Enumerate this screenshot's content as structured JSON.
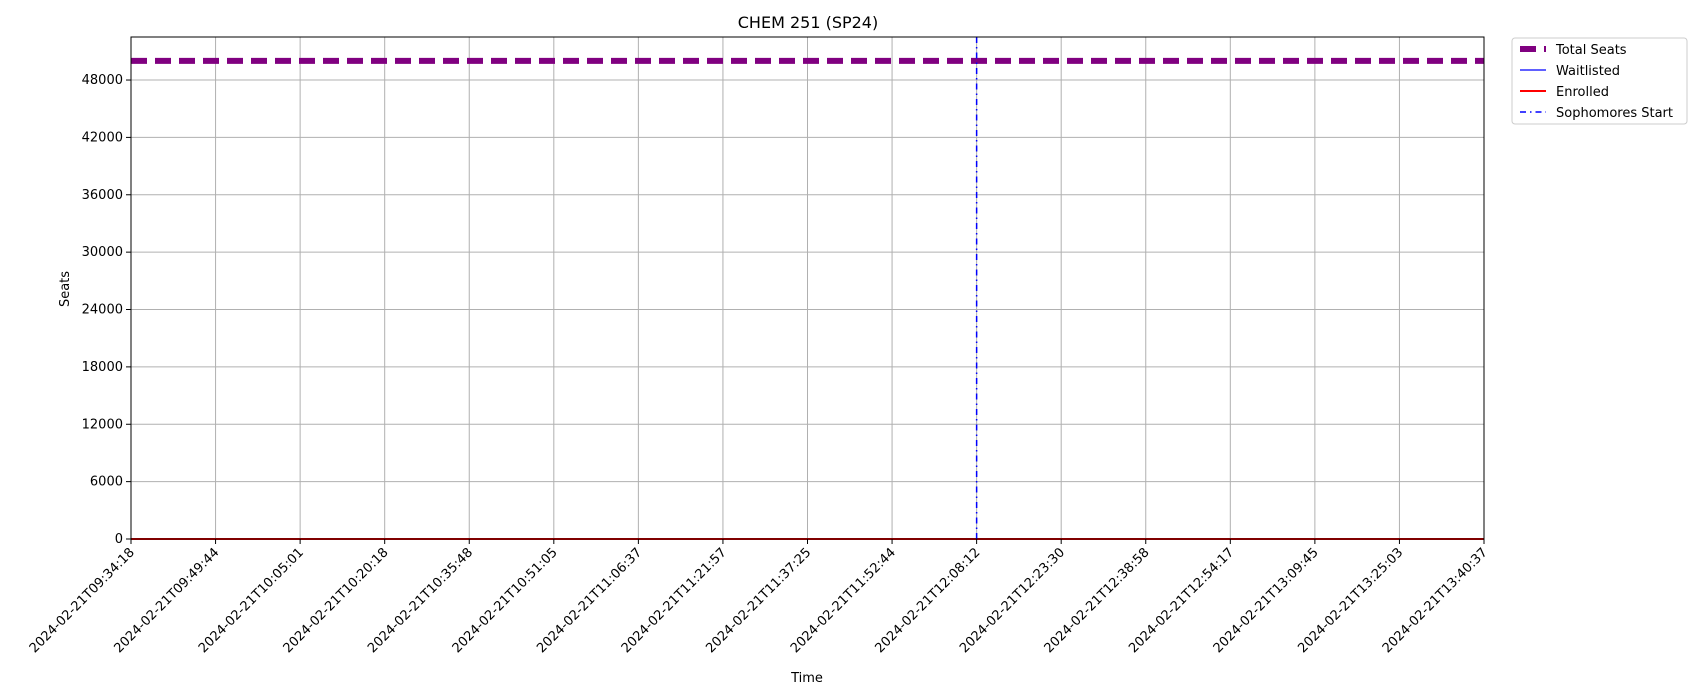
{
  "chart_data": {
    "type": "line",
    "title": "CHEM 251 (SP24)",
    "xlabel": "Time",
    "ylabel": "Seats",
    "x": [
      "2024-02-21T09:34:18",
      "2024-02-21T09:49:44",
      "2024-02-21T10:05:01",
      "2024-02-21T10:20:18",
      "2024-02-21T10:35:48",
      "2024-02-21T10:51:05",
      "2024-02-21T11:06:37",
      "2024-02-21T11:21:57",
      "2024-02-21T11:37:25",
      "2024-02-21T11:52:44",
      "2024-02-21T12:08:12",
      "2024-02-21T12:23:30",
      "2024-02-21T12:38:58",
      "2024-02-21T12:54:17",
      "2024-02-21T13:09:45",
      "2024-02-21T13:25:03",
      "2024-02-21T13:40:37"
    ],
    "yticks": [
      0,
      6000,
      12000,
      18000,
      24000,
      30000,
      36000,
      42000,
      48000
    ],
    "ylim": [
      0,
      52500
    ],
    "grid": true,
    "legend_position": "outside-top-right",
    "series": [
      {
        "name": "Total Seats",
        "color": "#800080",
        "style": "dashed-thick",
        "values": [
          50000,
          50000,
          50000,
          50000,
          50000,
          50000,
          50000,
          50000,
          50000,
          50000,
          50000,
          50000,
          50000,
          50000,
          50000,
          50000,
          50000
        ]
      },
      {
        "name": "Waitlisted",
        "color": "#0000ff",
        "style": "solid-thin",
        "values": [
          0,
          0,
          0,
          0,
          0,
          0,
          0,
          0,
          0,
          0,
          0,
          0,
          0,
          0,
          0,
          0,
          0
        ]
      },
      {
        "name": "Enrolled",
        "color": "#ff0000",
        "style": "solid",
        "values": [
          0,
          0,
          0,
          0,
          0,
          0,
          0,
          0,
          0,
          0,
          0,
          0,
          0,
          0,
          0,
          0,
          0
        ]
      }
    ],
    "vlines": [
      {
        "name": "Sophomores Start",
        "color": "#0000ff",
        "style": "dashdot",
        "x": "2024-02-21T12:08:12"
      }
    ]
  }
}
